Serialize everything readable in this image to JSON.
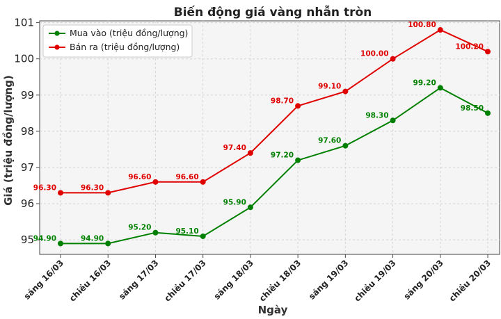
{
  "chart_data": {
    "type": "line",
    "title": "Biến động giá vàng nhẫn tròn",
    "xlabel": "Ngày",
    "ylabel": "Giá (triệu đồng/lượng)",
    "categories": [
      "sáng 16/03",
      "chiều 16/03",
      "sáng 17/03",
      "chiều 17/03",
      "sáng 18/03",
      "chiều 18/03",
      "sáng 19/03",
      "chiều 19/03",
      "sáng 20/03",
      "chiều 20/03"
    ],
    "series": [
      {
        "name": "Mua vào (triệu đồng/lượng)",
        "color": "#008000",
        "values": [
          94.9,
          94.9,
          95.2,
          95.1,
          95.9,
          97.2,
          97.6,
          98.3,
          99.2,
          98.5
        ],
        "labels": [
          "94.90",
          "94.90",
          "95.20",
          "95.10",
          "95.90",
          "97.20",
          "97.60",
          "98.30",
          "99.20",
          "98.50"
        ]
      },
      {
        "name": "Bán ra (triệu đồng/lượng)",
        "color": "#e00000",
        "values": [
          96.3,
          96.3,
          96.6,
          96.6,
          97.4,
          98.7,
          99.1,
          100.0,
          100.8,
          100.2
        ],
        "labels": [
          "96.30",
          "96.30",
          "96.60",
          "96.60",
          "97.40",
          "98.70",
          "99.10",
          "100.00",
          "100.80",
          "100.20"
        ]
      }
    ],
    "ylim": [
      94.6,
      101.05
    ],
    "yticks": [
      "95",
      "96",
      "97",
      "98",
      "99",
      "100",
      "101"
    ],
    "grid": true,
    "legend": "top-left"
  }
}
